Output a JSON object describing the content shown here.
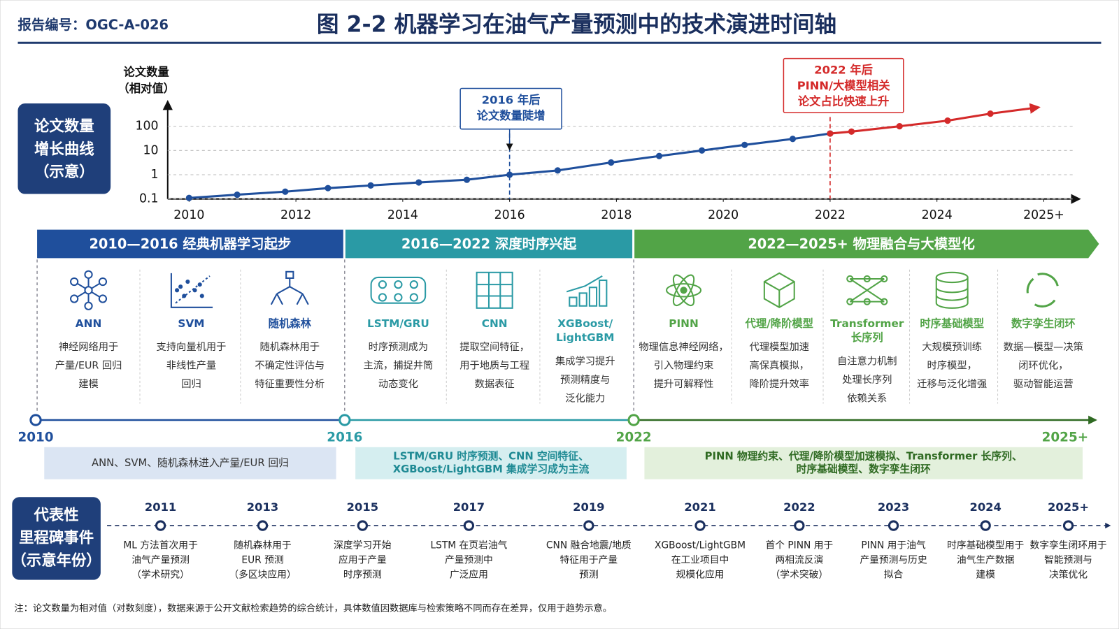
{
  "header": {
    "report_id": "报告编号：OGC-A-026",
    "title": "图 2-2 机器学习在油气产量预测中的技术演进时间轴"
  },
  "chart_data": {
    "type": "line",
    "side_label": [
      "论文数量",
      "增长曲线",
      "（示意）"
    ],
    "y_label": [
      "论文数量",
      "（相对值）"
    ],
    "log_scale": true,
    "grid": true,
    "x": [
      2010.0,
      2010.9,
      2011.8,
      2012.6,
      2013.4,
      2014.3,
      2015.2,
      2016.0,
      2016.9,
      2017.9,
      2018.8,
      2019.6,
      2020.4,
      2021.3,
      2022.0,
      2022.4,
      2023.3,
      2024.2,
      2025.0,
      2025.9
    ],
    "series": [
      {
        "color": "#1f4f9c",
        "values": [
          0.11,
          0.15,
          0.2,
          0.28,
          0.36,
          0.48,
          0.62,
          1,
          1.5,
          3.2,
          5.9,
          10,
          17,
          30,
          50,
          null,
          null,
          null,
          null,
          null
        ]
      },
      {
        "color": "#d42a2a",
        "values": [
          null,
          null,
          null,
          null,
          null,
          null,
          null,
          null,
          null,
          null,
          null,
          null,
          null,
          null,
          50,
          60,
          100,
          170,
          330,
          600
        ]
      }
    ],
    "xlim": [
      2009.6,
      2026.7
    ],
    "xticks": [
      2010,
      2012,
      2014,
      2016,
      2018,
      2020,
      2022,
      2024,
      {
        "value": 2026,
        "label": "2025+"
      }
    ],
    "ylim": [
      0.1,
      1000
    ],
    "yticks": [
      0.1,
      1,
      10,
      100
    ],
    "annotations": [
      {
        "x": 2016,
        "color": "#1f4f9c",
        "text": [
          "2016 年后",
          "论文数量陡增"
        ]
      },
      {
        "x": 2022,
        "color": "#d42a2a",
        "text": [
          "2022 年后",
          "PINN/大模型相关",
          "论文占比快速上升"
        ]
      }
    ]
  },
  "phases": [
    {
      "title": "2010—2016 经典机器学习起步",
      "color": "#1f4f9c",
      "start_label": "2010",
      "models": [
        {
          "name": [
            "ANN"
          ],
          "description": [
            "神经网络用于",
            "产量/EUR 回归",
            "建模"
          ]
        },
        {
          "name": [
            "SVM"
          ],
          "description": [
            "支持向量机用于",
            "非线性产量",
            "回归"
          ]
        },
        {
          "name": [
            "随机森林"
          ],
          "description": [
            "随机森林用于",
            "不确定性评估与",
            "特征重要性分析"
          ]
        }
      ],
      "summary": [
        "ANN、SVM、随机森林进入产量/EUR 回归"
      ]
    },
    {
      "title": "2016—2022 深度时序兴起",
      "color": "#2a9aa5",
      "start_label": "2016",
      "models": [
        {
          "name": [
            "LSTM/GRU"
          ],
          "description": [
            "时序预测成为",
            "主流，捕捉井筒",
            "动态变化"
          ]
        },
        {
          "name": [
            "CNN"
          ],
          "description": [
            "提取空间特征，",
            "用于地质与工程",
            "数据表征"
          ]
        },
        {
          "name": [
            "XGBoost/",
            "LightGBM"
          ],
          "description": [
            "集成学习提升",
            "预测精度与",
            "泛化能力"
          ]
        }
      ],
      "summary": [
        "LSTM/GRU 时序预测、CNN 空间特征、",
        "XGBoost/LightGBM 集成学习成为主流"
      ]
    },
    {
      "title": "2022—2025+ 物理融合与大模型化",
      "color": "#52a447",
      "start_label": "2022",
      "models": [
        {
          "name": [
            "PINN"
          ],
          "description": [
            "物理信息神经网络，",
            "引入物理约束",
            "提升可解释性"
          ]
        },
        {
          "name": [
            "代理/降阶模型"
          ],
          "description": [
            "代理模型加速",
            "高保真模拟，",
            "降阶提升效率"
          ]
        },
        {
          "name": [
            "Transformer",
            "长序列"
          ],
          "description": [
            "自注意力机制",
            "处理长序列",
            "依赖关系"
          ]
        },
        {
          "name": [
            "时序基础模型"
          ],
          "description": [
            "大规模预训练",
            "时序模型，",
            "迁移与泛化增强"
          ]
        },
        {
          "name": [
            "数字孪生闭环"
          ],
          "description": [
            "数据—模型—决策",
            "闭环优化，",
            "驱动智能运营"
          ]
        }
      ],
      "summary": [
        "PINN 物理约束、代理/降阶模型加速模拟、Transformer 长序列、",
        "时序基础模型、数字孪生闭环"
      ]
    }
  ],
  "timeline_end_label": "2025+",
  "milestones": {
    "side_label": [
      "代表性",
      "里程碑事件",
      "（示意年份）"
    ],
    "items": [
      {
        "year": "2011",
        "text": [
          "ML 方法首次用于",
          "油气产量预测",
          "（学术研究）"
        ]
      },
      {
        "year": "2013",
        "text": [
          "随机森林用于",
          "EUR 预测",
          "（多区块应用）"
        ]
      },
      {
        "year": "2015",
        "text": [
          "深度学习开始",
          "应用于产量",
          "时序预测"
        ]
      },
      {
        "year": "2017",
        "text": [
          "LSTM 在页岩油气",
          "产量预测中",
          "广泛应用"
        ]
      },
      {
        "year": "2019",
        "text": [
          "CNN 融合地震/地质",
          "特征用于产量",
          "预测"
        ]
      },
      {
        "year": "2021",
        "text": [
          "XGBoost/LightGBM",
          "在工业项目中",
          "规模化应用"
        ]
      },
      {
        "year": "2022",
        "text": [
          "首个 PINN 用于",
          "两相流反演",
          "（学术突破）"
        ]
      },
      {
        "year": "2023",
        "text": [
          "PINN 用于油气",
          "产量预测与历史",
          "拟合"
        ]
      },
      {
        "year": "2024",
        "text": [
          "时序基础模型用于",
          "油气生产数据",
          "建模"
        ]
      },
      {
        "year": "2025+",
        "text": [
          "数字孪生闭环用于",
          "智能预测与",
          "决策优化"
        ]
      }
    ]
  },
  "note": "注：论文数量为相对值（对数刻度），数据来源于公开文献检索趋势的综合统计，具体数值因数据库与检索策略不同而存在差异，仅用于趋势示意。"
}
